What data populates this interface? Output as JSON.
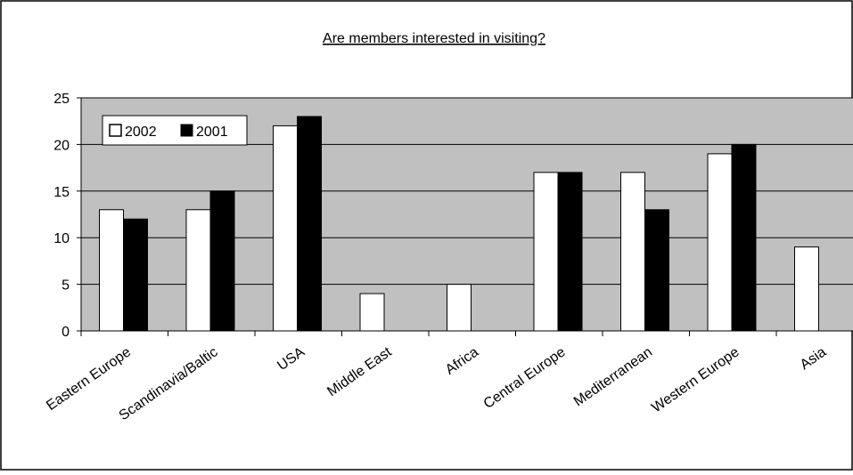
{
  "chart_data": {
    "type": "bar",
    "title": "Are members interested in visiting?",
    "xlabel": "",
    "ylabel": "",
    "ylim": [
      0,
      25
    ],
    "yticks": [
      0,
      5,
      10,
      15,
      20,
      25
    ],
    "grid": true,
    "legend_position": "top-left",
    "categories": [
      "Eastern Europe",
      "Scandinavia/Baltic",
      "USA",
      "Middle East",
      "Africa",
      "Central Europe",
      "Mediterranean",
      "Western Europe",
      "Asia"
    ],
    "series": [
      {
        "name": "2002",
        "color": "#ffffff",
        "values": [
          13,
          13,
          22,
          4,
          5,
          17,
          17,
          19,
          9
        ]
      },
      {
        "name": "2001",
        "color": "#000000",
        "values": [
          12,
          15,
          23,
          0,
          0,
          17,
          13,
          20,
          0
        ]
      }
    ],
    "plot_background": "#c0c0c0"
  }
}
